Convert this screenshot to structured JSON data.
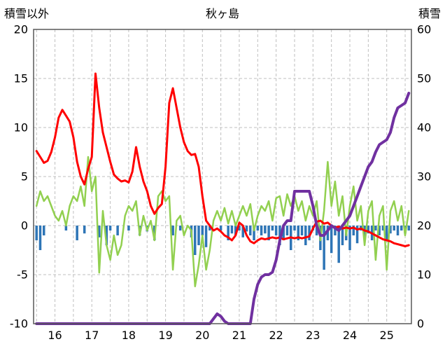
{
  "chart_data": {
    "type": "line",
    "title": "秋ヶ島",
    "left_axis": {
      "label": "積雪以外",
      "min": -10,
      "max": 20,
      "ticks": [
        -10,
        -5,
        0,
        5,
        10,
        15,
        20
      ]
    },
    "right_axis": {
      "label": "積雪",
      "min": 0,
      "max": 60,
      "ticks": [
        0,
        10,
        20,
        30,
        40,
        50,
        60
      ]
    },
    "x_axis": {
      "min": 15.42,
      "max": 25.67,
      "tick_values": [
        16,
        17,
        18,
        19,
        20,
        21,
        22,
        23,
        24,
        25
      ],
      "grid_start": 15.5,
      "grid_step": 0.5,
      "grid_end": 25.5
    },
    "x": {
      "start": 15.5,
      "step": 0.1,
      "count": 102
    },
    "grid_color": "#BFBFBF",
    "border_color": "#595959",
    "text_color": "#000000",
    "series": [
      {
        "name": "precipitation-bars",
        "kind": "bar",
        "axis": "left",
        "color": "#2E75B6",
        "bar_width": 3.5,
        "values": [
          -1.5,
          -2.5,
          -1.0,
          0,
          0,
          0,
          0,
          0,
          -0.5,
          0,
          0,
          -1.5,
          0,
          -0.8,
          0,
          0,
          0,
          -1.2,
          0,
          -2.0,
          -0.5,
          0,
          -1.0,
          0,
          0,
          -0.5,
          0,
          0,
          -1.0,
          0,
          -0.6,
          0,
          -1.5,
          0,
          0,
          0,
          0,
          -1.0,
          0,
          -0.5,
          0,
          0,
          -1.2,
          -3.0,
          -2.0,
          -1.0,
          -2.2,
          -0.5,
          0,
          0,
          -0.5,
          0,
          -1.5,
          -0.8,
          -1.0,
          -0.5,
          -1.2,
          -0.6,
          -1.0,
          -1.5,
          -0.5,
          -1.0,
          -0.8,
          -1.5,
          -0.5,
          -1.0,
          -2.0,
          -1.5,
          -1.0,
          -2.5,
          -0.5,
          -1.5,
          -1.0,
          -2.0,
          -1.5,
          -0.5,
          -1.0,
          -2.5,
          -4.5,
          -1.5,
          -2.8,
          -1.0,
          -3.8,
          -2.0,
          -1.5,
          -2.5,
          -1.0,
          -1.8,
          -0.5,
          -1.2,
          -0.8,
          -1.5,
          -0.5,
          -1.0,
          -0.5,
          -1.5,
          -0.8,
          -0.5,
          -1.0,
          -0.5,
          -0.8,
          -0.5
        ]
      },
      {
        "name": "green-line",
        "kind": "line",
        "axis": "left",
        "color": "#92D050",
        "width": 2.5,
        "values": [
          2.0,
          3.5,
          2.5,
          3.0,
          2.0,
          1.0,
          0.5,
          1.5,
          0.0,
          2.0,
          3.0,
          2.5,
          4.0,
          2.0,
          7.0,
          3.5,
          5.0,
          -4.8,
          1.5,
          -2.0,
          -3.5,
          -1.0,
          -3.0,
          -2.0,
          1.0,
          2.0,
          1.5,
          2.5,
          -1.0,
          1.0,
          -0.5,
          0.5,
          -1.5,
          3.0,
          3.5,
          2.5,
          3.0,
          -4.5,
          0.5,
          1.0,
          -1.0,
          0.0,
          -0.5,
          -6.2,
          -4.0,
          -1.0,
          -4.5,
          -2.5,
          0.5,
          1.5,
          0.5,
          1.8,
          0.2,
          1.5,
          0.0,
          1.0,
          2.0,
          1.0,
          2.2,
          -0.5,
          1.0,
          2.0,
          1.5,
          2.5,
          0.5,
          2.8,
          3.0,
          1.0,
          3.2,
          2.0,
          3.0,
          1.5,
          2.5,
          0.5,
          2.0,
          1.0,
          2.5,
          -1.5,
          1.5,
          6.5,
          2.0,
          4.5,
          1.0,
          3.0,
          -1.0,
          2.0,
          4.0,
          0.5,
          2.0,
          -2.0,
          1.5,
          2.5,
          -3.5,
          1.0,
          2.0,
          -4.5,
          1.5,
          2.5,
          0.5,
          2.0,
          -1.0,
          1.5
        ]
      },
      {
        "name": "red-line",
        "kind": "line",
        "axis": "left",
        "color": "#FF0000",
        "width": 3,
        "values": [
          7.6,
          7.0,
          6.4,
          6.6,
          7.5,
          9.0,
          11.0,
          11.8,
          11.2,
          10.6,
          9.0,
          6.5,
          5.0,
          4.2,
          5.8,
          7.0,
          15.5,
          12.0,
          9.5,
          8.0,
          6.5,
          5.2,
          4.8,
          4.5,
          4.6,
          4.4,
          5.5,
          8.0,
          6.0,
          4.5,
          3.5,
          2.0,
          1.2,
          1.8,
          2.2,
          6.0,
          12.5,
          14.0,
          12.0,
          10.0,
          8.5,
          7.6,
          7.2,
          7.3,
          6.0,
          3.0,
          0.5,
          0.0,
          -0.5,
          -0.3,
          -0.6,
          -1.0,
          -1.2,
          -1.5,
          -1.0,
          0.3,
          0.0,
          -1.0,
          -1.6,
          -1.8,
          -1.5,
          -1.3,
          -1.4,
          -1.3,
          -1.2,
          -1.3,
          -1.2,
          -1.4,
          -1.3,
          -1.2,
          -1.3,
          -1.2,
          -1.3,
          -1.2,
          -1.1,
          -0.3,
          0.4,
          0.5,
          0.2,
          0.3,
          0.0,
          -0.2,
          -0.1,
          -0.3,
          -0.2,
          -0.3,
          -0.2,
          -0.4,
          -0.3,
          -0.5,
          -0.6,
          -0.8,
          -1.0,
          -1.2,
          -1.4,
          -1.5,
          -1.6,
          -1.8,
          -1.9,
          -2.0,
          -2.1,
          -2.0
        ]
      },
      {
        "name": "snow-depth-line",
        "kind": "line",
        "axis": "right",
        "color": "#7030A0",
        "width": 4,
        "values": [
          0,
          0,
          0,
          0,
          0,
          0,
          0,
          0,
          0,
          0,
          0,
          0,
          0,
          0,
          0,
          0,
          0,
          0,
          0,
          0,
          0,
          0,
          0,
          0,
          0,
          0,
          0,
          0,
          0,
          0,
          0,
          0,
          0,
          0,
          0,
          0,
          0,
          0,
          0,
          0,
          0,
          0,
          0,
          0,
          0,
          0,
          0,
          0,
          1,
          2,
          1.5,
          0.5,
          0,
          0,
          0,
          0,
          0,
          0,
          0,
          5,
          8,
          9.5,
          10,
          10,
          10.5,
          13,
          17,
          20,
          21,
          21,
          27,
          27,
          27,
          27,
          27,
          24,
          20,
          18,
          18,
          19,
          20,
          19.5,
          19,
          20,
          21,
          22,
          24,
          26,
          28,
          30,
          32,
          33,
          35,
          36.5,
          37,
          37.5,
          39,
          42,
          44,
          44.5,
          45,
          47
        ]
      }
    ]
  }
}
